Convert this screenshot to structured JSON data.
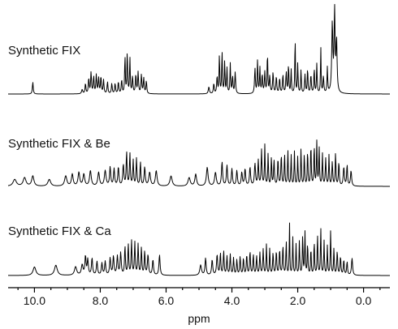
{
  "chart_data": {
    "type": "line",
    "title": "",
    "xlabel": "ppm",
    "ylabel": "",
    "xlim": [
      10.8,
      -0.8
    ],
    "x_reversed": true,
    "x_ticks": [
      10.0,
      8.0,
      6.0,
      4.0,
      2.0,
      0.0
    ],
    "x_tick_labels": [
      "10.0",
      "8.0",
      "6.0",
      "4.0",
      "2.0",
      "0.0"
    ],
    "grid": false,
    "legend": "none",
    "series": [
      {
        "name": "Synthetic FIX",
        "peaks": [
          [
            10.05,
            0.14,
            0.015
          ],
          [
            8.55,
            0.05,
            0.02
          ],
          [
            8.45,
            0.12,
            0.015
          ],
          [
            8.35,
            0.18,
            0.015
          ],
          [
            8.28,
            0.25,
            0.015
          ],
          [
            8.2,
            0.2,
            0.015
          ],
          [
            8.12,
            0.22,
            0.015
          ],
          [
            8.05,
            0.18,
            0.015
          ],
          [
            7.98,
            0.2,
            0.015
          ],
          [
            7.9,
            0.16,
            0.015
          ],
          [
            7.78,
            0.14,
            0.015
          ],
          [
            7.65,
            0.12,
            0.015
          ],
          [
            7.55,
            0.12,
            0.015
          ],
          [
            7.45,
            0.14,
            0.015
          ],
          [
            7.35,
            0.16,
            0.015
          ],
          [
            7.25,
            0.45,
            0.012
          ],
          [
            7.18,
            0.5,
            0.012
          ],
          [
            7.1,
            0.42,
            0.012
          ],
          [
            7.02,
            0.2,
            0.015
          ],
          [
            6.92,
            0.22,
            0.015
          ],
          [
            6.85,
            0.25,
            0.015
          ],
          [
            6.75,
            0.22,
            0.015
          ],
          [
            6.68,
            0.18,
            0.015
          ],
          [
            6.6,
            0.15,
            0.015
          ],
          [
            4.7,
            0.08,
            0.02
          ],
          [
            4.55,
            0.12,
            0.015
          ],
          [
            4.45,
            0.2,
            0.015
          ],
          [
            4.38,
            0.45,
            0.012
          ],
          [
            4.3,
            0.5,
            0.012
          ],
          [
            4.22,
            0.38,
            0.012
          ],
          [
            4.15,
            0.3,
            0.012
          ],
          [
            4.05,
            0.35,
            0.012
          ],
          [
            3.98,
            0.2,
            0.015
          ],
          [
            3.9,
            0.25,
            0.015
          ],
          [
            3.3,
            0.3,
            0.015
          ],
          [
            3.22,
            0.4,
            0.012
          ],
          [
            3.15,
            0.3,
            0.012
          ],
          [
            3.08,
            0.22,
            0.015
          ],
          [
            3.0,
            0.25,
            0.015
          ],
          [
            2.92,
            0.48,
            0.012
          ],
          [
            2.85,
            0.2,
            0.015
          ],
          [
            2.75,
            0.25,
            0.015
          ],
          [
            2.65,
            0.2,
            0.015
          ],
          [
            2.55,
            0.18,
            0.015
          ],
          [
            2.45,
            0.22,
            0.015
          ],
          [
            2.35,
            0.25,
            0.015
          ],
          [
            2.28,
            0.35,
            0.012
          ],
          [
            2.2,
            0.28,
            0.012
          ],
          [
            2.08,
            0.7,
            0.01
          ],
          [
            2.0,
            0.35,
            0.012
          ],
          [
            1.9,
            0.28,
            0.012
          ],
          [
            1.78,
            0.22,
            0.015
          ],
          [
            1.7,
            0.3,
            0.012
          ],
          [
            1.6,
            0.22,
            0.015
          ],
          [
            1.5,
            0.3,
            0.012
          ],
          [
            1.42,
            0.35,
            0.012
          ],
          [
            1.3,
            0.55,
            0.01
          ],
          [
            1.22,
            0.2,
            0.015
          ],
          [
            1.1,
            0.3,
            0.012
          ],
          [
            0.95,
            0.8,
            0.02
          ],
          [
            0.88,
            0.95,
            0.018
          ],
          [
            0.82,
            0.6,
            0.018
          ]
        ]
      },
      {
        "name": "Synthetic FIX & Be",
        "peaks": [
          [
            10.6,
            0.08,
            0.06
          ],
          [
            10.3,
            0.1,
            0.05
          ],
          [
            10.05,
            0.12,
            0.04
          ],
          [
            9.55,
            0.08,
            0.05
          ],
          [
            9.05,
            0.12,
            0.04
          ],
          [
            8.85,
            0.14,
            0.03
          ],
          [
            8.65,
            0.16,
            0.03
          ],
          [
            8.5,
            0.14,
            0.03
          ],
          [
            8.3,
            0.18,
            0.03
          ],
          [
            8.05,
            0.16,
            0.03
          ],
          [
            7.85,
            0.18,
            0.03
          ],
          [
            7.7,
            0.22,
            0.02
          ],
          [
            7.58,
            0.2,
            0.02
          ],
          [
            7.45,
            0.22,
            0.02
          ],
          [
            7.3,
            0.25,
            0.02
          ],
          [
            7.2,
            0.4,
            0.015
          ],
          [
            7.1,
            0.38,
            0.015
          ],
          [
            7.0,
            0.3,
            0.015
          ],
          [
            6.9,
            0.32,
            0.015
          ],
          [
            6.78,
            0.28,
            0.015
          ],
          [
            6.65,
            0.22,
            0.02
          ],
          [
            6.5,
            0.16,
            0.03
          ],
          [
            6.3,
            0.18,
            0.03
          ],
          [
            5.85,
            0.12,
            0.04
          ],
          [
            5.3,
            0.1,
            0.04
          ],
          [
            5.1,
            0.14,
            0.03
          ],
          [
            4.75,
            0.22,
            0.03
          ],
          [
            4.5,
            0.16,
            0.03
          ],
          [
            4.3,
            0.28,
            0.02
          ],
          [
            4.15,
            0.24,
            0.02
          ],
          [
            4.0,
            0.2,
            0.02
          ],
          [
            3.85,
            0.18,
            0.02
          ],
          [
            3.7,
            0.16,
            0.02
          ],
          [
            3.6,
            0.2,
            0.02
          ],
          [
            3.45,
            0.22,
            0.02
          ],
          [
            3.3,
            0.26,
            0.02
          ],
          [
            3.2,
            0.3,
            0.015
          ],
          [
            3.1,
            0.42,
            0.015
          ],
          [
            3.0,
            0.48,
            0.012
          ],
          [
            2.9,
            0.38,
            0.012
          ],
          [
            2.8,
            0.34,
            0.012
          ],
          [
            2.72,
            0.3,
            0.015
          ],
          [
            2.6,
            0.32,
            0.015
          ],
          [
            2.5,
            0.36,
            0.015
          ],
          [
            2.4,
            0.38,
            0.012
          ],
          [
            2.3,
            0.42,
            0.012
          ],
          [
            2.2,
            0.36,
            0.012
          ],
          [
            2.1,
            0.4,
            0.012
          ],
          [
            2.0,
            0.34,
            0.012
          ],
          [
            1.9,
            0.44,
            0.012
          ],
          [
            1.8,
            0.38,
            0.012
          ],
          [
            1.7,
            0.42,
            0.012
          ],
          [
            1.6,
            0.5,
            0.012
          ],
          [
            1.5,
            0.48,
            0.012
          ],
          [
            1.42,
            0.52,
            0.012
          ],
          [
            1.35,
            0.46,
            0.012
          ],
          [
            1.25,
            0.38,
            0.012
          ],
          [
            1.15,
            0.32,
            0.015
          ],
          [
            1.05,
            0.36,
            0.012
          ],
          [
            0.95,
            0.28,
            0.015
          ],
          [
            0.85,
            0.4,
            0.012
          ],
          [
            0.75,
            0.28,
            0.015
          ],
          [
            0.6,
            0.22,
            0.02
          ],
          [
            0.5,
            0.25,
            0.015
          ],
          [
            0.38,
            0.18,
            0.02
          ]
        ]
      },
      {
        "name": "Synthetic FIX & Ca",
        "peaks": [
          [
            10.0,
            0.1,
            0.05
          ],
          [
            9.35,
            0.12,
            0.05
          ],
          [
            8.75,
            0.1,
            0.04
          ],
          [
            8.55,
            0.12,
            0.03
          ],
          [
            8.45,
            0.22,
            0.02
          ],
          [
            8.38,
            0.18,
            0.02
          ],
          [
            8.25,
            0.2,
            0.02
          ],
          [
            8.1,
            0.16,
            0.02
          ],
          [
            7.95,
            0.14,
            0.02
          ],
          [
            7.85,
            0.16,
            0.02
          ],
          [
            7.7,
            0.2,
            0.02
          ],
          [
            7.6,
            0.22,
            0.02
          ],
          [
            7.48,
            0.22,
            0.02
          ],
          [
            7.38,
            0.26,
            0.02
          ],
          [
            7.25,
            0.34,
            0.015
          ],
          [
            7.15,
            0.36,
            0.015
          ],
          [
            7.05,
            0.4,
            0.015
          ],
          [
            6.95,
            0.38,
            0.015
          ],
          [
            6.85,
            0.36,
            0.015
          ],
          [
            6.75,
            0.32,
            0.015
          ],
          [
            6.65,
            0.28,
            0.015
          ],
          [
            6.55,
            0.24,
            0.02
          ],
          [
            6.4,
            0.18,
            0.02
          ],
          [
            6.2,
            0.24,
            0.02
          ],
          [
            4.95,
            0.12,
            0.03
          ],
          [
            4.8,
            0.2,
            0.02
          ],
          [
            4.6,
            0.18,
            0.02
          ],
          [
            4.45,
            0.24,
            0.02
          ],
          [
            4.35,
            0.26,
            0.015
          ],
          [
            4.25,
            0.28,
            0.015
          ],
          [
            4.15,
            0.22,
            0.015
          ],
          [
            4.05,
            0.24,
            0.015
          ],
          [
            3.95,
            0.2,
            0.015
          ],
          [
            3.85,
            0.18,
            0.015
          ],
          [
            3.75,
            0.22,
            0.015
          ],
          [
            3.65,
            0.2,
            0.015
          ],
          [
            3.55,
            0.24,
            0.015
          ],
          [
            3.45,
            0.28,
            0.015
          ],
          [
            3.35,
            0.24,
            0.015
          ],
          [
            3.25,
            0.22,
            0.015
          ],
          [
            3.15,
            0.26,
            0.015
          ],
          [
            3.05,
            0.3,
            0.015
          ],
          [
            2.95,
            0.36,
            0.012
          ],
          [
            2.85,
            0.32,
            0.012
          ],
          [
            2.75,
            0.26,
            0.015
          ],
          [
            2.65,
            0.28,
            0.015
          ],
          [
            2.55,
            0.3,
            0.015
          ],
          [
            2.45,
            0.34,
            0.015
          ],
          [
            2.35,
            0.4,
            0.012
          ],
          [
            2.25,
            0.62,
            0.01
          ],
          [
            2.15,
            0.44,
            0.012
          ],
          [
            2.05,
            0.36,
            0.012
          ],
          [
            1.95,
            0.4,
            0.012
          ],
          [
            1.85,
            0.46,
            0.012
          ],
          [
            1.78,
            0.5,
            0.012
          ],
          [
            1.7,
            0.38,
            0.012
          ],
          [
            1.6,
            0.32,
            0.012
          ],
          [
            1.5,
            0.4,
            0.012
          ],
          [
            1.4,
            0.48,
            0.012
          ],
          [
            1.3,
            0.55,
            0.012
          ],
          [
            1.2,
            0.4,
            0.012
          ],
          [
            1.1,
            0.34,
            0.012
          ],
          [
            1.0,
            0.52,
            0.012
          ],
          [
            0.9,
            0.32,
            0.012
          ],
          [
            0.8,
            0.28,
            0.015
          ],
          [
            0.7,
            0.22,
            0.015
          ],
          [
            0.6,
            0.18,
            0.015
          ],
          [
            0.5,
            0.16,
            0.015
          ],
          [
            0.35,
            0.2,
            0.02
          ]
        ]
      }
    ]
  }
}
